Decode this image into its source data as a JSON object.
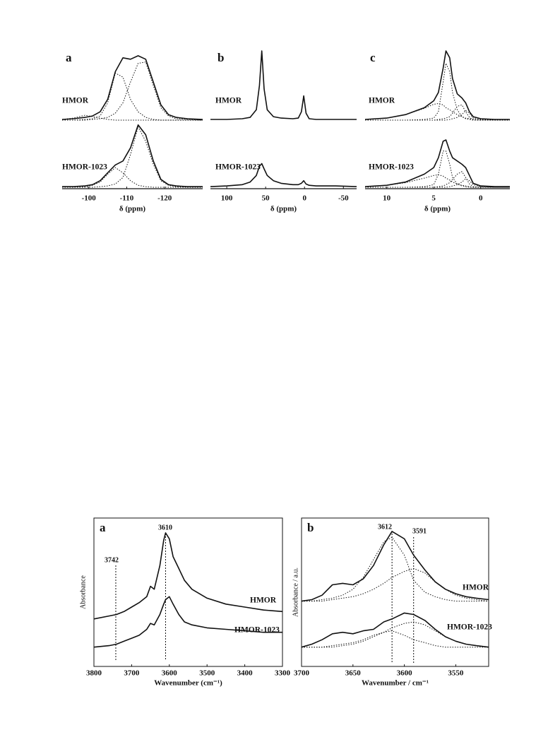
{
  "chart_data": [
    {
      "type": "line",
      "title": "a",
      "xlabel": "δ (ppm)",
      "xlim": [
        -93,
        -130
      ],
      "ylim": [
        0,
        100
      ],
      "xticks": [
        -100,
        -110,
        -120
      ],
      "x": [
        -93,
        -96,
        -99,
        -101,
        -103,
        -105,
        -107,
        -109,
        -111,
        -113,
        -115,
        -117,
        -119,
        -121,
        -123,
        -126,
        -130
      ],
      "series": [
        {
          "name": "HMOR",
          "color": "#111111",
          "values": [
            1,
            2,
            4,
            6,
            12,
            30,
            70,
            90,
            88,
            93,
            88,
            55,
            22,
            8,
            4,
            2,
            1
          ],
          "components": [
            [
              0,
              0,
              1,
              2,
              6,
              25,
              68,
              62,
              30,
              12,
              4,
              1,
              0,
              0,
              0,
              0,
              0
            ],
            [
              0,
              0,
              0,
              1,
              2,
              4,
              10,
              25,
              55,
              82,
              84,
              50,
              18,
              6,
              2,
              1,
              0
            ],
            [
              1,
              3,
              7,
              5,
              3,
              1,
              0,
              0,
              0,
              0,
              0,
              0,
              0,
              0,
              0,
              0,
              0
            ]
          ]
        },
        {
          "name": "HMOR-1023",
          "color": "#111111",
          "values": [
            1,
            1,
            2,
            4,
            10,
            22,
            34,
            40,
            60,
            95,
            80,
            40,
            12,
            4,
            2,
            1,
            1
          ],
          "components": [
            [
              0,
              0,
              1,
              3,
              8,
              20,
              30,
              22,
              10,
              3,
              1,
              0,
              0,
              0,
              0,
              0,
              0
            ],
            [
              0,
              0,
              0,
              0,
              1,
              2,
              5,
              15,
              50,
              92,
              70,
              35,
              10,
              3,
              1,
              0,
              0
            ]
          ]
        }
      ]
    },
    {
      "type": "line",
      "title": "b",
      "xlabel": "δ (ppm)",
      "xlim": [
        121,
        -67
      ],
      "ylim": [
        0,
        100
      ],
      "xticks": [
        100,
        50,
        0,
        -50
      ],
      "x": [
        121,
        100,
        80,
        70,
        62,
        58,
        55,
        52,
        48,
        40,
        30,
        15,
        8,
        4,
        1,
        -2,
        -6,
        -15,
        -40,
        -67
      ],
      "series": [
        {
          "name": "HMOR",
          "color": "#111111",
          "values": [
            1,
            1,
            2,
            4,
            15,
            50,
            100,
            45,
            15,
            5,
            3,
            2,
            3,
            12,
            35,
            10,
            2,
            1,
            1,
            1
          ]
        },
        {
          "name": "HMOR-1023",
          "color": "#111111",
          "values": [
            1,
            2,
            4,
            8,
            18,
            32,
            36,
            28,
            18,
            10,
            6,
            4,
            4,
            6,
            10,
            5,
            3,
            2,
            2,
            1
          ]
        }
      ]
    },
    {
      "type": "line",
      "title": "c",
      "xlabel": "δ (ppm)",
      "xlim": [
        12.3,
        -3.1
      ],
      "ylim": [
        0,
        100
      ],
      "xticks": [
        10,
        5,
        0
      ],
      "x": [
        12.3,
        10,
        8,
        6,
        5,
        4.5,
        4,
        3.7,
        3.3,
        3,
        2.5,
        2,
        1.6,
        1.2,
        0.8,
        0,
        -1.5,
        -3.1
      ],
      "series": [
        {
          "name": "HMOR",
          "color": "#111111",
          "values": [
            1,
            3,
            8,
            18,
            28,
            40,
            75,
            100,
            90,
            60,
            38,
            32,
            25,
            12,
            5,
            2,
            1,
            1
          ],
          "components": [
            [
              1,
              3,
              8,
              17,
              23,
              24,
              22,
              18,
              15,
              12,
              8,
              5,
              3,
              2,
              1,
              0,
              0,
              0
            ],
            [
              0,
              0,
              0,
              1,
              3,
              12,
              55,
              82,
              70,
              40,
              15,
              5,
              2,
              1,
              0,
              0,
              0,
              0
            ],
            [
              0,
              0,
              0,
              0,
              0,
              1,
              2,
              3,
              5,
              10,
              20,
              22,
              12,
              4,
              1,
              0,
              0,
              0
            ],
            [
              0,
              0,
              0,
              0,
              0,
              0,
              0,
              0,
              1,
              2,
              4,
              8,
              14,
              10,
              3,
              1,
              0,
              0
            ]
          ]
        },
        {
          "name": "HMOR-1023",
          "color": "#111111",
          "values": [
            1,
            3,
            8,
            20,
            30,
            45,
            70,
            72,
            55,
            45,
            40,
            35,
            30,
            18,
            6,
            2,
            1,
            1
          ],
          "components": [
            [
              1,
              3,
              7,
              14,
              18,
              19,
              17,
              14,
              11,
              8,
              5,
              3,
              2,
              1,
              0,
              0,
              0,
              0
            ],
            [
              0,
              0,
              0,
              1,
              4,
              20,
              55,
              55,
              35,
              15,
              5,
              2,
              1,
              0,
              0,
              0,
              0,
              0
            ],
            [
              0,
              0,
              0,
              0,
              0,
              1,
              2,
              4,
              7,
              12,
              20,
              24,
              15,
              5,
              1,
              0,
              0,
              0
            ],
            [
              0,
              0,
              0,
              0,
              0,
              0,
              0,
              0,
              1,
              2,
              4,
              8,
              13,
              10,
              4,
              1,
              0,
              0
            ]
          ]
        }
      ]
    },
    {
      "type": "line",
      "title": "a",
      "xlabel": "Wavenumber (cm⁻¹)",
      "ylabel": "Absorbance",
      "xlim": [
        3800,
        3300
      ],
      "ylim": [
        0,
        100
      ],
      "xticks": [
        3800,
        3700,
        3600,
        3500,
        3400,
        3300
      ],
      "markers": [
        3742,
        3610
      ],
      "x": [
        3800,
        3760,
        3740,
        3720,
        3700,
        3680,
        3660,
        3650,
        3640,
        3625,
        3615,
        3610,
        3600,
        3590,
        3575,
        3560,
        3540,
        3500,
        3450,
        3400,
        3350,
        3300
      ],
      "series": [
        {
          "name": "HMOR",
          "color": "#111111",
          "values": [
            32,
            34,
            35,
            37,
            40,
            43,
            47,
            54,
            52,
            68,
            85,
            90,
            86,
            74,
            66,
            58,
            52,
            46,
            42,
            40,
            38,
            37
          ]
        },
        {
          "name": "HMOR-1023",
          "color": "#111111",
          "values": [
            13,
            14,
            15,
            17,
            19,
            21,
            25,
            29,
            28,
            35,
            42,
            45,
            47,
            42,
            35,
            30,
            28,
            26,
            25,
            24,
            23,
            23
          ]
        }
      ]
    },
    {
      "type": "line",
      "title": "b",
      "xlabel": "Wavenumber / cm⁻¹",
      "ylabel": "Absorbance / a.u.",
      "xlim": [
        3700,
        3518
      ],
      "ylim": [
        0,
        100
      ],
      "xticks": [
        3700,
        3650,
        3600,
        3550
      ],
      "markers": [
        3612,
        3591
      ],
      "x": [
        3700,
        3690,
        3680,
        3670,
        3660,
        3650,
        3640,
        3630,
        3620,
        3612,
        3600,
        3591,
        3580,
        3570,
        3560,
        3550,
        3540,
        3530,
        3518
      ],
      "series": [
        {
          "name": "HMOR",
          "color": "#111111",
          "values": [
            44,
            45,
            48,
            55,
            56,
            55,
            59,
            68,
            82,
            91,
            86,
            75,
            65,
            57,
            52,
            49,
            47,
            46,
            45
          ],
          "components": [
            [
              44,
              44,
              45,
              46,
              48,
              52,
              60,
              72,
              84,
              87,
              75,
              58,
              50,
              47,
              45,
              44,
              44,
              44,
              44
            ],
            [
              44,
              44,
              44,
              45,
              46,
              47,
              49,
              52,
              56,
              60,
              64,
              66,
              63,
              57,
              52,
              48,
              46,
              45,
              44
            ]
          ]
        },
        {
          "name": "HMOR-1023",
          "color": "#111111",
          "values": [
            13,
            15,
            18,
            22,
            23,
            22,
            24,
            25,
            30,
            32,
            36,
            35,
            31,
            25,
            20,
            17,
            15,
            14,
            13
          ],
          "components": [
            [
              13,
              13,
              13,
              14,
              15,
              16,
              18,
              21,
              23,
              24,
              21,
              18,
              16,
              14,
              13,
              13,
              13,
              13,
              13
            ],
            [
              13,
              13,
              13,
              13,
              14,
              15,
              17,
              20,
              23,
              26,
              29,
              30,
              28,
              24,
              20,
              17,
              15,
              14,
              13
            ]
          ]
        }
      ]
    }
  ]
}
